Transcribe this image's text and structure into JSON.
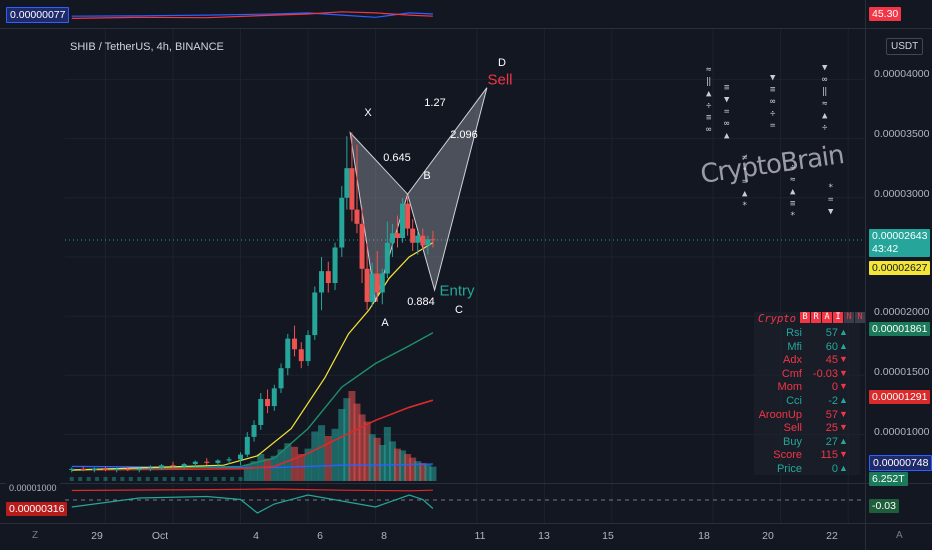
{
  "symbol_title": "SHIB / TetherUS, 4h, BINANCE",
  "currency_button": "USDT",
  "y_axis_ticks": [
    "0.00004000",
    "0.00003500",
    "0.00003000",
    "0.00002000",
    "0.00001500",
    "0.00001000"
  ],
  "x_axis_ticks": [
    "29",
    "Oct",
    "4",
    "6",
    "8",
    "11",
    "13",
    "15",
    "18",
    "20",
    "22"
  ],
  "corner_labels": {
    "z": "Z",
    "a": "A"
  },
  "top_pane": {
    "left_label": "0.00000077",
    "right_label": "45.30"
  },
  "bottom_pane": {
    "left_label_top": "0.00001000",
    "left_label": "0.00000316",
    "right_label": "-0.03"
  },
  "price_labels": {
    "last_price": "0.00002643",
    "countdown": "43:42",
    "yellow_ma": "0.00002627",
    "green_ma": "0.00001861",
    "red_ma": "0.00001291",
    "blue_ma": "0.00000748",
    "volume": "6.252T"
  },
  "harmonic": {
    "points": {
      "x": "X",
      "a": "A",
      "b": "B",
      "c": "C",
      "d": "D"
    },
    "ratios": {
      "xb": "0.645",
      "ac": "0.884",
      "bd": "2.096",
      "xd": "1.27"
    },
    "entry": "Entry",
    "sell": "Sell"
  },
  "watermark": "CryptoBrain",
  "panel": {
    "title": "Crypto",
    "boxes": [
      "B",
      "R",
      "A",
      "I",
      "N",
      "N"
    ],
    "rows": [
      {
        "label": "Rsi",
        "value": "57",
        "arrow": "▲",
        "color": "#26a69a"
      },
      {
        "label": "Mfi",
        "value": "60",
        "arrow": "▲",
        "color": "#26a69a"
      },
      {
        "label": "Adx",
        "value": "45",
        "arrow": "▼",
        "color": "#f23645"
      },
      {
        "label": "Cmf",
        "value": "-0.03",
        "arrow": "▼",
        "color": "#f23645"
      },
      {
        "label": "Mom",
        "value": "0",
        "arrow": "▼",
        "color": "#f23645"
      },
      {
        "label": "Cci",
        "value": "-2",
        "arrow": "▲",
        "color": "#26a69a"
      },
      {
        "label": "AroonUp",
        "value": "57",
        "arrow": "▼",
        "color": "#f23645"
      },
      {
        "label": "Sell",
        "value": "25",
        "arrow": "▼",
        "color": "#f23645"
      },
      {
        "label": "Buy",
        "value": "27",
        "arrow": "▲",
        "color": "#26a69a"
      },
      {
        "label": "Score",
        "value": "115",
        "arrow": "▼",
        "color": "#f23645"
      },
      {
        "label": "Price",
        "value": "0",
        "arrow": "▲",
        "color": "#26a69a"
      }
    ]
  },
  "chart_data": {
    "type": "candlestick",
    "title": "SHIB / TetherUS, 4h, BINANCE",
    "ylim": [
      5.9e-06,
      4.35e-05
    ],
    "x_range": [
      -1.2,
      22.5
    ],
    "grid": true,
    "colors": {
      "up": "#26a69a",
      "down": "#ef5350",
      "ma_yellow": "#f5e536",
      "ma_green": "#1f8f6a",
      "ma_red": "#d92b2b",
      "ma_blue": "#2962ff",
      "pattern": "#cfd2d8"
    },
    "candles": [
      {
        "t": -1.0,
        "o": 7e-06,
        "h": 7.2e-06,
        "l": 6.8e-06,
        "c": 7.1e-06
      },
      {
        "t": -0.66,
        "o": 7.1e-06,
        "h": 7.3e-06,
        "l": 6.9e-06,
        "c": 7e-06
      },
      {
        "t": -0.33,
        "o": 7e-06,
        "h": 7.2e-06,
        "l": 6.8e-06,
        "c": 7.1e-06
      },
      {
        "t": 0.0,
        "o": 7.1e-06,
        "h": 7.3e-06,
        "l": 6.9e-06,
        "c": 7e-06
      },
      {
        "t": 0.33,
        "o": 7e-06,
        "h": 7.2e-06,
        "l": 6.8e-06,
        "c": 7.1e-06
      },
      {
        "t": 0.66,
        "o": 7.1e-06,
        "h": 7.3e-06,
        "l": 6.9e-06,
        "c": 7e-06
      },
      {
        "t": 1.0,
        "o": 7e-06,
        "h": 7.2e-06,
        "l": 6.8e-06,
        "c": 7.1e-06
      },
      {
        "t": 1.33,
        "o": 7.1e-06,
        "h": 7.4e-06,
        "l": 6.9e-06,
        "c": 7.2e-06
      },
      {
        "t": 1.66,
        "o": 7.2e-06,
        "h": 7.5e-06,
        "l": 7e-06,
        "c": 7.4e-06
      },
      {
        "t": 2.0,
        "o": 7.4e-06,
        "h": 7.7e-06,
        "l": 7.2e-06,
        "c": 7.3e-06
      },
      {
        "t": 2.33,
        "o": 7.3e-06,
        "h": 7.6e-06,
        "l": 7.1e-06,
        "c": 7.5e-06
      },
      {
        "t": 2.66,
        "o": 7.5e-06,
        "h": 7.8e-06,
        "l": 7.3e-06,
        "c": 7.7e-06
      },
      {
        "t": 3.0,
        "o": 7.7e-06,
        "h": 8e-06,
        "l": 7.4e-06,
        "c": 7.6e-06
      },
      {
        "t": 3.33,
        "o": 7.6e-06,
        "h": 7.9e-06,
        "l": 7.3e-06,
        "c": 7.8e-06
      },
      {
        "t": 3.66,
        "o": 7.8e-06,
        "h": 8.1e-06,
        "l": 7.5e-06,
        "c": 7.9e-06
      },
      {
        "t": 4.0,
        "o": 7.9e-06,
        "h": 8.5e-06,
        "l": 7.4e-06,
        "c": 8.3e-06
      },
      {
        "t": 4.2,
        "o": 8.3e-06,
        "h": 1.02e-05,
        "l": 8.1e-06,
        "c": 9.8e-06
      },
      {
        "t": 4.4,
        "o": 9.8e-06,
        "h": 1.12e-05,
        "l": 9.4e-06,
        "c": 1.08e-05
      },
      {
        "t": 4.6,
        "o": 1.08e-05,
        "h": 1.35e-05,
        "l": 1.04e-05,
        "c": 1.3e-05
      },
      {
        "t": 4.8,
        "o": 1.3e-05,
        "h": 1.38e-05,
        "l": 1.18e-05,
        "c": 1.24e-05
      },
      {
        "t": 5.0,
        "o": 1.24e-05,
        "h": 1.42e-05,
        "l": 1.2e-05,
        "c": 1.39e-05
      },
      {
        "t": 5.2,
        "o": 1.39e-05,
        "h": 1.6e-05,
        "l": 1.35e-05,
        "c": 1.56e-05
      },
      {
        "t": 5.4,
        "o": 1.56e-05,
        "h": 1.85e-05,
        "l": 1.5e-05,
        "c": 1.81e-05
      },
      {
        "t": 5.6,
        "o": 1.81e-05,
        "h": 1.92e-05,
        "l": 1.66e-05,
        "c": 1.72e-05
      },
      {
        "t": 5.8,
        "o": 1.72e-05,
        "h": 1.78e-05,
        "l": 1.56e-05,
        "c": 1.62e-05
      },
      {
        "t": 6.0,
        "o": 1.62e-05,
        "h": 1.88e-05,
        "l": 1.58e-05,
        "c": 1.84e-05
      },
      {
        "t": 6.2,
        "o": 1.84e-05,
        "h": 2.25e-05,
        "l": 1.8e-05,
        "c": 2.2e-05
      },
      {
        "t": 6.4,
        "o": 2.2e-05,
        "h": 2.5e-05,
        "l": 2.05e-05,
        "c": 2.38e-05
      },
      {
        "t": 6.6,
        "o": 2.38e-05,
        "h": 2.46e-05,
        "l": 2.2e-05,
        "c": 2.28e-05
      },
      {
        "t": 6.8,
        "o": 2.28e-05,
        "h": 2.62e-05,
        "l": 2.22e-05,
        "c": 2.58e-05
      },
      {
        "t": 7.0,
        "o": 2.58e-05,
        "h": 3.1e-05,
        "l": 2.5e-05,
        "c": 3e-05
      },
      {
        "t": 7.15,
        "o": 3e-05,
        "h": 3.52e-05,
        "l": 2.9e-05,
        "c": 3.25e-05
      },
      {
        "t": 7.3,
        "o": 3.25e-05,
        "h": 3.55e-05,
        "l": 2.8e-05,
        "c": 2.9e-05
      },
      {
        "t": 7.45,
        "o": 2.9e-05,
        "h": 3.45e-05,
        "l": 2.7e-05,
        "c": 2.78e-05
      },
      {
        "t": 7.6,
        "o": 2.78e-05,
        "h": 2.92e-05,
        "l": 2.28e-05,
        "c": 2.4e-05
      },
      {
        "t": 7.75,
        "o": 2.4e-05,
        "h": 2.62e-05,
        "l": 2.05e-05,
        "c": 2.12e-05
      },
      {
        "t": 7.9,
        "o": 2.12e-05,
        "h": 2.45e-05,
        "l": 2.08e-05,
        "c": 2.36e-05
      },
      {
        "t": 8.05,
        "o": 2.36e-05,
        "h": 2.55e-05,
        "l": 2.12e-05,
        "c": 2.2e-05
      },
      {
        "t": 8.2,
        "o": 2.2e-05,
        "h": 2.4e-05,
        "l": 2.1e-05,
        "c": 2.36e-05
      },
      {
        "t": 8.35,
        "o": 2.36e-05,
        "h": 2.8e-05,
        "l": 2.32e-05,
        "c": 2.62e-05
      },
      {
        "t": 8.5,
        "o": 2.62e-05,
        "h": 2.78e-05,
        "l": 2.5e-05,
        "c": 2.7e-05
      },
      {
        "t": 8.65,
        "o": 2.7e-05,
        "h": 2.85e-05,
        "l": 2.58e-05,
        "c": 2.66e-05
      },
      {
        "t": 8.8,
        "o": 2.66e-05,
        "h": 3e-05,
        "l": 2.62e-05,
        "c": 2.95e-05
      },
      {
        "t": 8.95,
        "o": 2.95e-05,
        "h": 3.02e-05,
        "l": 2.68e-05,
        "c": 2.74e-05
      },
      {
        "t": 9.1,
        "o": 2.74e-05,
        "h": 2.82e-05,
        "l": 2.55e-05,
        "c": 2.62e-05
      },
      {
        "t": 9.25,
        "o": 2.62e-05,
        "h": 2.72e-05,
        "l": 2.52e-05,
        "c": 2.68e-05
      },
      {
        "t": 9.4,
        "o": 2.68e-05,
        "h": 2.74e-05,
        "l": 2.56e-05,
        "c": 2.6e-05
      },
      {
        "t": 9.55,
        "o": 2.6e-05,
        "h": 2.68e-05,
        "l": 2.52e-05,
        "c": 2.65e-05
      },
      {
        "t": 9.7,
        "o": 2.65e-05,
        "h": 2.72e-05,
        "l": 2.58e-05,
        "c": 2.64e-05
      }
    ],
    "volume": [
      {
        "t": 4.2,
        "v": 0.18,
        "up": true
      },
      {
        "t": 4.4,
        "v": 0.22,
        "up": true
      },
      {
        "t": 4.6,
        "v": 0.3,
        "up": true
      },
      {
        "t": 4.8,
        "v": 0.25,
        "up": false
      },
      {
        "t": 5.0,
        "v": 0.28,
        "up": true
      },
      {
        "t": 5.2,
        "v": 0.35,
        "up": true
      },
      {
        "t": 5.4,
        "v": 0.42,
        "up": true
      },
      {
        "t": 5.6,
        "v": 0.38,
        "up": false
      },
      {
        "t": 5.8,
        "v": 0.3,
        "up": false
      },
      {
        "t": 6.0,
        "v": 0.36,
        "up": true
      },
      {
        "t": 6.2,
        "v": 0.55,
        "up": true
      },
      {
        "t": 6.4,
        "v": 0.62,
        "up": true
      },
      {
        "t": 6.6,
        "v": 0.5,
        "up": false
      },
      {
        "t": 6.8,
        "v": 0.58,
        "up": true
      },
      {
        "t": 7.0,
        "v": 0.8,
        "up": true
      },
      {
        "t": 7.15,
        "v": 0.92,
        "up": true
      },
      {
        "t": 7.3,
        "v": 1.0,
        "up": false
      },
      {
        "t": 7.45,
        "v": 0.86,
        "up": false
      },
      {
        "t": 7.6,
        "v": 0.74,
        "up": false
      },
      {
        "t": 7.75,
        "v": 0.66,
        "up": false
      },
      {
        "t": 7.9,
        "v": 0.52,
        "up": true
      },
      {
        "t": 8.05,
        "v": 0.48,
        "up": false
      },
      {
        "t": 8.2,
        "v": 0.4,
        "up": true
      },
      {
        "t": 8.35,
        "v": 0.6,
        "up": true
      },
      {
        "t": 8.5,
        "v": 0.44,
        "up": true
      },
      {
        "t": 8.65,
        "v": 0.36,
        "up": false
      },
      {
        "t": 8.8,
        "v": 0.34,
        "up": true
      },
      {
        "t": 8.95,
        "v": 0.3,
        "up": false
      },
      {
        "t": 9.1,
        "v": 0.26,
        "up": false
      },
      {
        "t": 9.25,
        "v": 0.22,
        "up": true
      },
      {
        "t": 9.4,
        "v": 0.2,
        "up": false
      },
      {
        "t": 9.55,
        "v": 0.18,
        "up": true
      },
      {
        "t": 9.7,
        "v": 0.16,
        "up": true
      }
    ],
    "ma_yellow": [
      [
        -1.0,
        7e-06
      ],
      [
        3.5,
        7.4e-06
      ],
      [
        4.5,
        8.2e-06
      ],
      [
        5.5,
        1.05e-05
      ],
      [
        6.5,
        1.48e-05
      ],
      [
        7.2,
        1.85e-05
      ],
      [
        7.8,
        2.05e-05
      ],
      [
        8.4,
        2.32e-05
      ],
      [
        9.0,
        2.5e-05
      ],
      [
        9.7,
        2.62e-05
      ]
    ],
    "ma_green": [
      [
        -1.0,
        7e-06
      ],
      [
        4.0,
        7.3e-06
      ],
      [
        5.0,
        8e-06
      ],
      [
        6.0,
        1.05e-05
      ],
      [
        7.0,
        1.4e-05
      ],
      [
        8.0,
        1.6e-05
      ],
      [
        9.0,
        1.75e-05
      ],
      [
        9.7,
        1.86e-05
      ]
    ],
    "ma_red": [
      [
        -1.0,
        7e-06
      ],
      [
        4.0,
        7.1e-06
      ],
      [
        5.0,
        7.3e-06
      ],
      [
        6.0,
        8.4e-06
      ],
      [
        7.0,
        9.8e-06
      ],
      [
        8.0,
        1.12e-05
      ],
      [
        9.0,
        1.23e-05
      ],
      [
        9.7,
        1.29e-05
      ]
    ],
    "ma_blue": [
      [
        -1.0,
        7.3e-06
      ],
      [
        4.0,
        7.2e-06
      ],
      [
        5.0,
        7.2e-06
      ],
      [
        6.0,
        7.3e-06
      ],
      [
        7.0,
        7.4e-06
      ],
      [
        8.0,
        7.4e-06
      ],
      [
        9.7,
        7.5e-06
      ]
    ],
    "pattern_points": {
      "X": [
        7.25,
        3.55e-05
      ],
      "A": [
        8.0,
        2.12e-05
      ],
      "B": [
        8.95,
        3.03e-05
      ],
      "C": [
        9.75,
        2.22e-05
      ],
      "D": [
        11.3,
        3.93e-05
      ]
    },
    "indicator_top": {
      "red": [
        [
          -1.0,
          0.3
        ],
        [
          1.0,
          0.35
        ],
        [
          3.0,
          0.33
        ],
        [
          5.0,
          0.45
        ],
        [
          6.0,
          0.5
        ],
        [
          7.0,
          0.6
        ],
        [
          8.0,
          0.55
        ],
        [
          9.0,
          0.45
        ],
        [
          9.7,
          0.4
        ]
      ],
      "blue": [
        [
          -1.0,
          0.4
        ],
        [
          1.0,
          0.42
        ],
        [
          3.0,
          0.45
        ],
        [
          5.0,
          0.5
        ],
        [
          6.0,
          0.55
        ],
        [
          7.0,
          0.45
        ],
        [
          8.0,
          0.35
        ],
        [
          9.0,
          0.55
        ],
        [
          9.7,
          0.5
        ]
      ]
    },
    "indicator_bottom": {
      "green": [
        [
          -1.0,
          0.3
        ],
        [
          1.0,
          0.6
        ],
        [
          3.0,
          0.65
        ],
        [
          4.0,
          0.55
        ],
        [
          4.5,
          0.1
        ],
        [
          5.0,
          0.4
        ],
        [
          6.0,
          0.7
        ],
        [
          7.0,
          0.5
        ],
        [
          8.0,
          0.3
        ],
        [
          9.0,
          0.7
        ],
        [
          9.4,
          0.55
        ],
        [
          9.7,
          0.25
        ]
      ],
      "red": [
        [
          -1.0,
          0.85
        ],
        [
          3.0,
          0.88
        ],
        [
          5.0,
          0.9
        ],
        [
          7.0,
          0.86
        ],
        [
          9.0,
          0.84
        ],
        [
          9.7,
          0.86
        ]
      ]
    }
  }
}
